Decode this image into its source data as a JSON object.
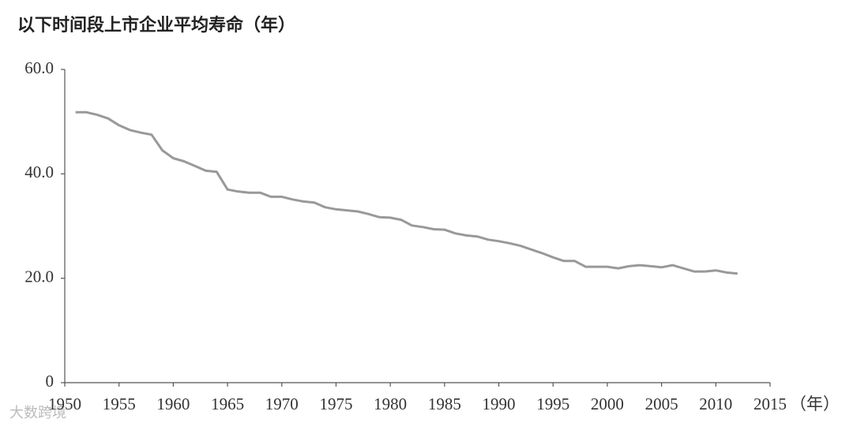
{
  "chart_data": {
    "type": "line",
    "title": "以下时间段上市企业平均寿命（年）",
    "x_label": "（年）",
    "watermark": "大数跨境",
    "x": [
      1951,
      1952,
      1953,
      1954,
      1955,
      1956,
      1957,
      1958,
      1959,
      1960,
      1961,
      1962,
      1963,
      1964,
      1965,
      1966,
      1967,
      1968,
      1969,
      1970,
      1971,
      1972,
      1973,
      1974,
      1975,
      1976,
      1977,
      1978,
      1979,
      1980,
      1981,
      1982,
      1983,
      1984,
      1985,
      1986,
      1987,
      1988,
      1989,
      1990,
      1991,
      1992,
      1993,
      1994,
      1995,
      1996,
      1997,
      1998,
      1999,
      2000,
      2001,
      2002,
      2003,
      2004,
      2005,
      2006,
      2007,
      2008,
      2009,
      2010,
      2011,
      2012
    ],
    "series": [
      {
        "color": "#999999",
        "values": [
          51.8,
          51.8,
          51.3,
          50.6,
          49.3,
          48.4,
          47.9,
          47.5,
          44.5,
          43.0,
          42.4,
          41.5,
          40.6,
          40.4,
          37.0,
          36.6,
          36.4,
          36.4,
          35.6,
          35.6,
          35.1,
          34.7,
          34.5,
          33.6,
          33.2,
          33.0,
          32.8,
          32.3,
          31.7,
          31.6,
          31.2,
          30.1,
          29.8,
          29.4,
          29.3,
          28.6,
          28.2,
          28.0,
          27.4,
          27.1,
          26.7,
          26.2,
          25.5,
          24.8,
          24.0,
          23.3,
          23.3,
          22.2,
          22.2,
          22.2,
          21.9,
          22.3,
          22.5,
          22.3,
          22.1,
          22.5,
          21.9,
          21.3,
          21.3,
          21.5,
          21.1,
          20.9
        ]
      }
    ],
    "xlim": [
      1950,
      2015
    ],
    "xticks": [
      1950,
      1955,
      1960,
      1965,
      1970,
      1975,
      1980,
      1985,
      1990,
      1995,
      2000,
      2005,
      2010,
      2015
    ],
    "ylim": [
      0,
      60
    ],
    "yticks": [
      0,
      {
        "value": 20,
        "label": "20.0"
      },
      {
        "value": 40,
        "label": "40.0"
      },
      {
        "value": 60,
        "label": "60.0"
      }
    ],
    "grid": false
  }
}
